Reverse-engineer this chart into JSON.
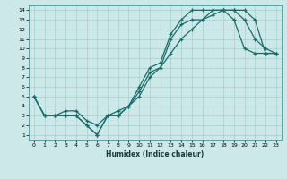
{
  "xlabel": "Humidex (Indice chaleur)",
  "ylabel": "",
  "bg_color": "#cce8e8",
  "line_color": "#1a6b6b",
  "xlim": [
    -0.5,
    23.5
  ],
  "ylim": [
    0.5,
    14.5
  ],
  "xticks": [
    0,
    1,
    2,
    3,
    4,
    5,
    6,
    7,
    8,
    9,
    10,
    11,
    12,
    13,
    14,
    15,
    16,
    17,
    18,
    19,
    20,
    21,
    22,
    23
  ],
  "yticks": [
    1,
    2,
    3,
    4,
    5,
    6,
    7,
    8,
    9,
    10,
    11,
    12,
    13,
    14
  ],
  "line1": {
    "x": [
      0,
      1,
      2,
      3,
      4,
      5,
      6,
      7,
      8,
      9,
      10,
      11,
      12,
      13,
      14,
      15,
      16,
      17,
      18,
      19,
      20,
      21,
      22,
      23
    ],
    "y": [
      5,
      3,
      3,
      3,
      3,
      2,
      1,
      3,
      3,
      4,
      6,
      8,
      8.5,
      11.5,
      13,
      14,
      14,
      14,
      14,
      13,
      10,
      9.5,
      9.5,
      9.5
    ]
  },
  "line2": {
    "x": [
      0,
      1,
      2,
      3,
      4,
      5,
      6,
      7,
      8,
      9,
      10,
      11,
      12,
      13,
      14,
      15,
      16,
      17,
      18,
      19,
      20,
      21,
      22,
      23
    ],
    "y": [
      5,
      3,
      3,
      3.5,
      3.5,
      2.5,
      2,
      3,
      3.5,
      4,
      5.5,
      7.5,
      8,
      11,
      12.5,
      13,
      13,
      14,
      14,
      14,
      13,
      11,
      10,
      9.5
    ]
  },
  "line3": {
    "x": [
      0,
      1,
      2,
      3,
      4,
      5,
      6,
      7,
      8,
      9,
      10,
      11,
      12,
      13,
      14,
      15,
      16,
      17,
      18,
      19,
      20,
      21,
      22,
      23
    ],
    "y": [
      5,
      3,
      3,
      3,
      3,
      2,
      1,
      3,
      3,
      4,
      5,
      7,
      8,
      9.5,
      11,
      12,
      13,
      13.5,
      14,
      14,
      14,
      13,
      9.5,
      9.5
    ]
  }
}
